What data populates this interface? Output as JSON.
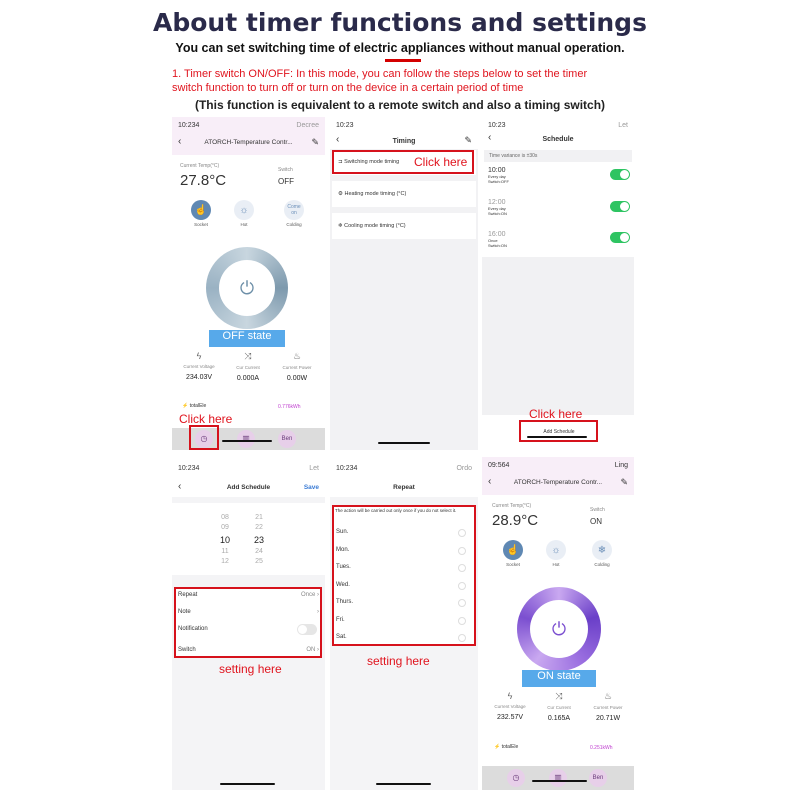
{
  "header": {
    "title": "About timer functions and settings",
    "subtitle": "You can set switching time of electric appliances without manual operation.",
    "instruction_line1": "1. Timer switch ON/OFF: In this mode, you can follow the steps below to set the timer",
    "instruction_line2": "switch function to turn off or turn on the device in a certain period of time",
    "note": "(This function is equivalent to a remote switch and also a timing switch)"
  },
  "colors": {
    "accent_red": "#e0141e",
    "state_blue": "#57a9ea",
    "toggle_green": "#2ec462",
    "ring_off": "#8fa8ba",
    "ring_on": "#7b4fd0"
  },
  "panel1": {
    "time": "10:234",
    "status_right": "Decree",
    "title": "ATORCH-Temperature Contr...",
    "temp_label": "Current Temp(°C)",
    "temp": "27.8°C",
    "switch_label": "Switch",
    "switch_value": "OFF",
    "modes": [
      {
        "label": "Socket",
        "icon": "hand-icon"
      },
      {
        "label": "Hot",
        "icon": "sun-icon"
      },
      {
        "label": "Colding",
        "icon": "",
        "text": "Come on"
      }
    ],
    "state": "OFF state",
    "stats": [
      {
        "label": "Current Voltage",
        "value": "234.03V",
        "icon": "bolt-icon"
      },
      {
        "label": "Cur Current",
        "value": "0.000A",
        "icon": "shuffle-icon"
      },
      {
        "label": "Current Power",
        "value": "0.00W",
        "icon": "flame-icon"
      }
    ],
    "total_label": "totalEle",
    "total_value": "0.776kWh",
    "callout": "Click here",
    "tabs": [
      "clock-icon",
      "chart-icon",
      "Ben"
    ]
  },
  "panel2": {
    "time": "10:23",
    "title": "Timing",
    "items": [
      "Switching mode timing",
      "Heating mode timing (°C)",
      "Cooling mode timing (°C)"
    ],
    "callout": "Click here"
  },
  "panel3": {
    "time": "10:23",
    "status_right": "Let",
    "title": "Schedule",
    "variance": "Time variance is ±30s",
    "items": [
      {
        "time": "10:00",
        "repeat": "Every day",
        "action": "Switch:OFF",
        "enabled": true
      },
      {
        "time": "12:00",
        "repeat": "Every day",
        "action": "Switch:ON",
        "enabled": true
      },
      {
        "time": "16:00",
        "repeat": "Once",
        "action": "Switch:ON",
        "enabled": true
      }
    ],
    "callout": "Click here",
    "add_button": "Add Schedule"
  },
  "panel4": {
    "time": "10:234",
    "status_right": "Let",
    "title": "Add Schedule",
    "save": "Save",
    "hours": [
      "08",
      "09",
      "10",
      "11",
      "12"
    ],
    "minutes": [
      "21",
      "22",
      "23",
      "24",
      "25"
    ],
    "rows": [
      {
        "label": "Repeat",
        "value": "Once"
      },
      {
        "label": "Note",
        "value": ""
      },
      {
        "label": "Notification",
        "value": ""
      },
      {
        "label": "Switch",
        "value": "ON"
      }
    ],
    "notification_on": false,
    "callout": "setting here"
  },
  "panel5": {
    "time": "10:234",
    "status_right": "Ordo",
    "title": "Repeat",
    "hint": "The action will be carried out only once if you do not select it.",
    "days": [
      "Sun.",
      "Mon.",
      "Tues.",
      "Wed.",
      "Thurs.",
      "Fri.",
      "Sat."
    ],
    "callout": "setting here"
  },
  "panel6": {
    "time": "09:564",
    "status_right": "Ling",
    "title": "ATORCH-Temperature Contr...",
    "temp_label": "Current Temp(°C)",
    "temp": "28.9°C",
    "switch_label": "Switch",
    "switch_value": "ON",
    "modes": [
      {
        "label": "Socket",
        "icon": "hand-icon"
      },
      {
        "label": "Hot",
        "icon": "sun-icon"
      },
      {
        "label": "Colding",
        "icon": "snowflake-icon"
      }
    ],
    "state": "ON state",
    "stats": [
      {
        "label": "Current Voltage",
        "value": "232.57V",
        "icon": "bolt-icon"
      },
      {
        "label": "Cur Current",
        "value": "0.165A",
        "icon": "shuffle-icon"
      },
      {
        "label": "Current Power",
        "value": "20.71W",
        "icon": "flame-icon"
      }
    ],
    "total_label": "totalEle",
    "total_value": "0.251kWh",
    "tabs": [
      "clock-icon",
      "chart-icon",
      "Ben"
    ]
  }
}
